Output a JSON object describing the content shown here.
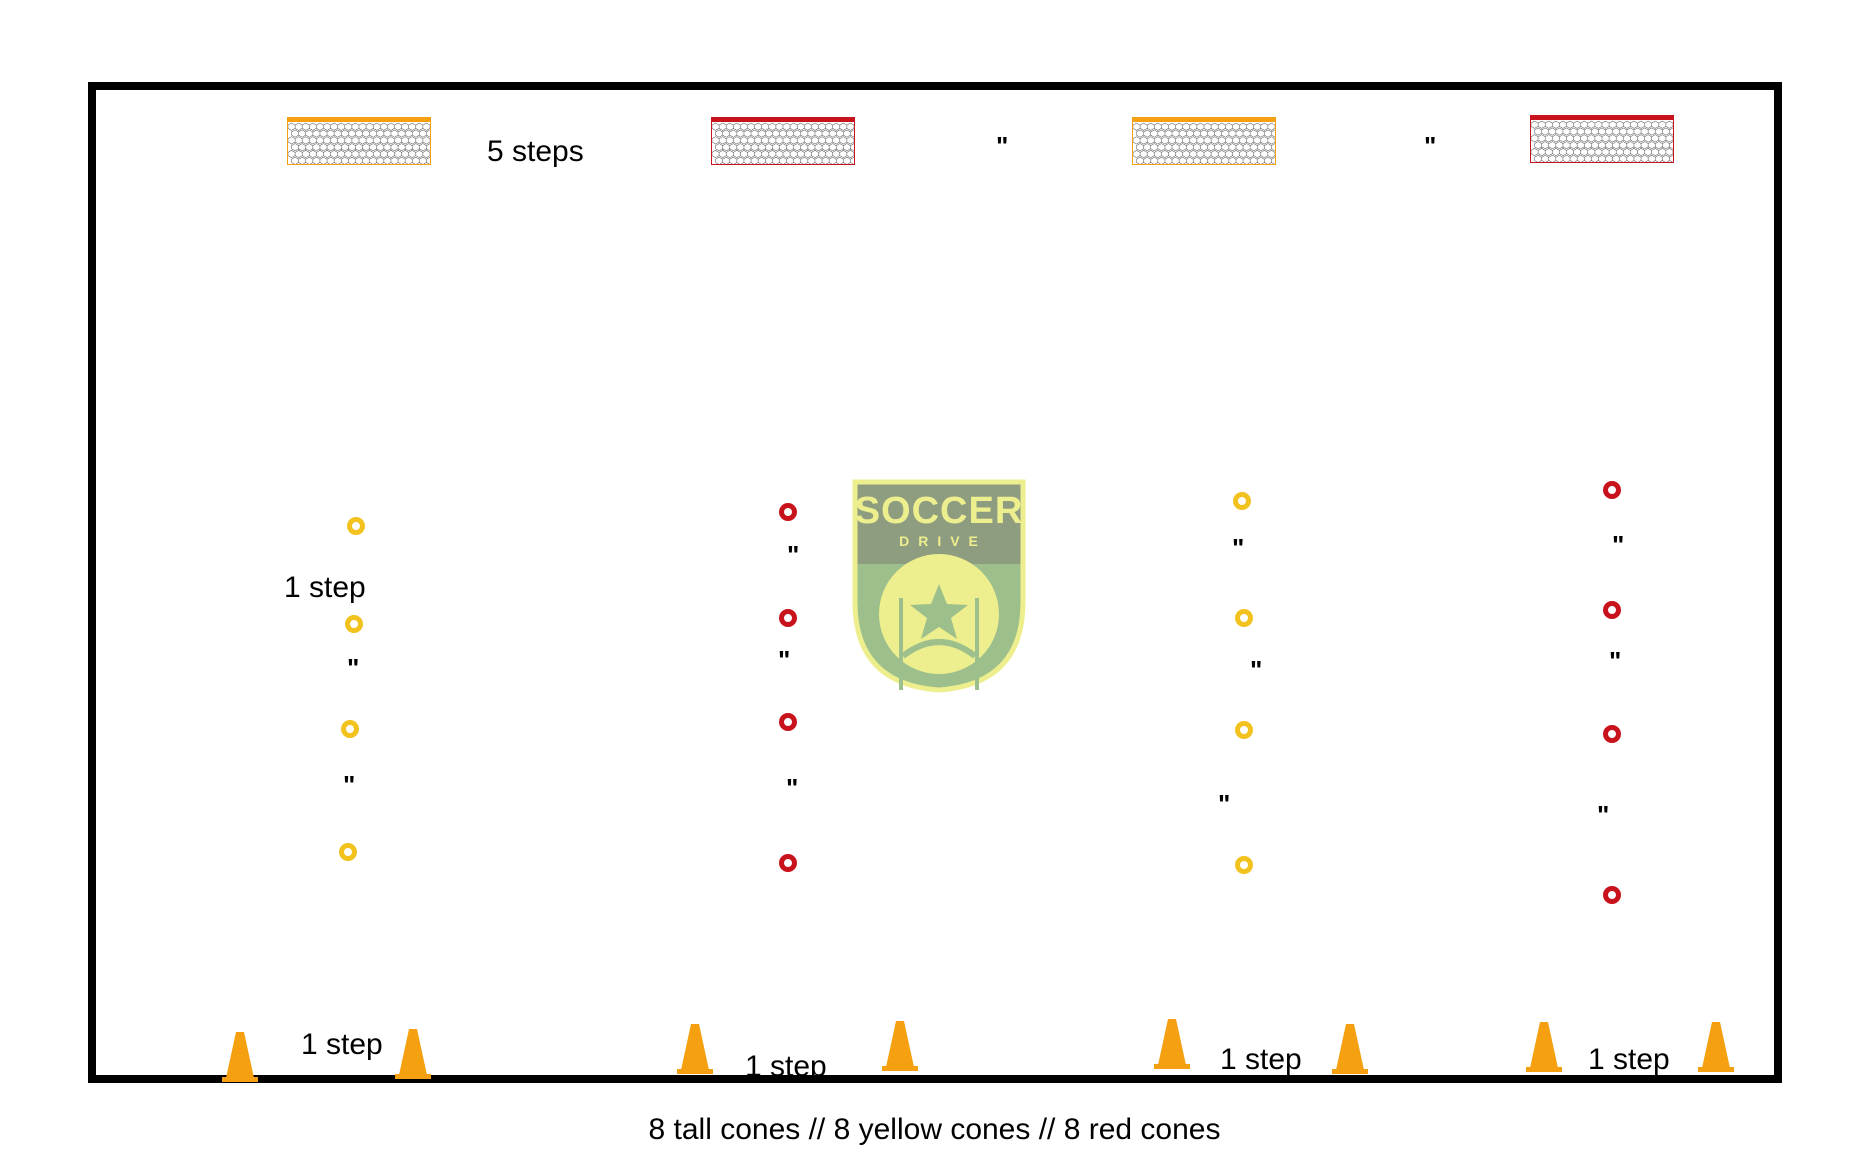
{
  "colors": {
    "border": "#000000",
    "orange": "#F4A011",
    "red": "#C8121C",
    "yellow": "#F2C21F",
    "logo_yellow": "#EDEE8D",
    "logo_gray": "#8E9C80",
    "logo_green": "#9CBF8C"
  },
  "goals": [
    {
      "color": "orange",
      "icon": "goal-net-icon"
    },
    {
      "color": "red",
      "icon": "goal-net-icon"
    },
    {
      "color": "orange",
      "icon": "goal-net-icon"
    },
    {
      "color": "red",
      "icon": "goal-net-icon"
    }
  ],
  "labels": {
    "goal_spacing": "5 steps",
    "ditto": "\"",
    "disc_spacing": "1 step",
    "cone_gap_1": "1 step",
    "cone_gap_2": "1 step",
    "cone_gap_3": "1 step",
    "cone_gap_4": "1 step"
  },
  "disc_columns": [
    {
      "color": "yellow",
      "count": 4
    },
    {
      "color": "red",
      "count": 4
    },
    {
      "color": "yellow",
      "count": 4
    },
    {
      "color": "red",
      "count": 4
    }
  ],
  "tall_cones": {
    "count": 8,
    "icon": "tall-cone-icon"
  },
  "logo": {
    "line1": "SOCCER",
    "line2": "DRIVE",
    "icon": "soccer-ball-star-icon"
  },
  "caption": "8 tall cones // 8 yellow cones // 8 red cones"
}
